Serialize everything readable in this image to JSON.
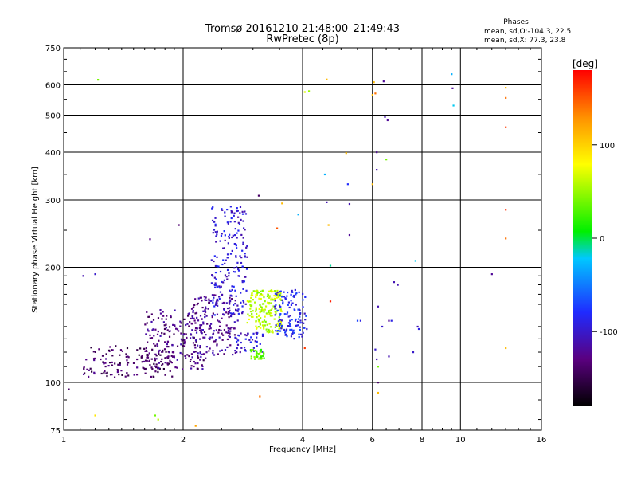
{
  "chart_data": {
    "type": "scatter",
    "title": "Tromsø 20161210 21:48:00–21:49:43",
    "subtitle": "RwPretec (8p)",
    "xlabel": "Frequency [MHz]",
    "ylabel": "Stationary phase Virtual Height [km]",
    "x_scale": "log",
    "y_scale": "log",
    "xlim": [
      1,
      16
    ],
    "ylim": [
      75,
      750
    ],
    "x_ticks": [
      1,
      2,
      4,
      6,
      8,
      10,
      16
    ],
    "y_ticks": [
      75,
      100,
      200,
      300,
      400,
      500,
      600,
      750
    ],
    "grid": true,
    "legend": {
      "title": "Phases",
      "lines": [
        "mean, sd,O:-104.3, 22.5",
        "mean, sd,X: 77.3, 23.8"
      ]
    },
    "colorbar": {
      "label": "[deg]",
      "range": [
        -180,
        180
      ],
      "ticks": [
        100,
        0,
        -100
      ]
    },
    "clusters": [
      {
        "x": [
          1.12,
          1.9
        ],
        "y": [
          103,
          125
        ],
        "phase": -140,
        "count": 150
      },
      {
        "x": [
          1.6,
          2.3
        ],
        "y": [
          108,
          155
        ],
        "phase": -128,
        "count": 180
      },
      {
        "x": [
          2.1,
          2.75
        ],
        "y": [
          118,
          170
        ],
        "phase": -120,
        "count": 170
      },
      {
        "x": [
          2.35,
          2.9
        ],
        "y": [
          150,
          290
        ],
        "phase": -95,
        "count": 200
      },
      {
        "x": [
          2.7,
          3.2
        ],
        "y": [
          120,
          135
        ],
        "phase": -100,
        "count": 40
      },
      {
        "x": [
          2.95,
          3.2
        ],
        "y": [
          115,
          122
        ],
        "phase": 35,
        "count": 40
      },
      {
        "x": [
          2.9,
          3.55
        ],
        "y": [
          135,
          175
        ],
        "phase": 60,
        "count": 180
      },
      {
        "x": [
          3.4,
          4.1
        ],
        "y": [
          130,
          175
        ],
        "phase": -85,
        "count": 120
      }
    ],
    "points": [
      {
        "x": 1.03,
        "y": 96,
        "phase": -140
      },
      {
        "x": 1.12,
        "y": 190,
        "phase": -110
      },
      {
        "x": 1.2,
        "y": 192,
        "phase": -100
      },
      {
        "x": 1.22,
        "y": 619,
        "phase": 40
      },
      {
        "x": 1.2,
        "y": 82,
        "phase": 90
      },
      {
        "x": 1.65,
        "y": 237,
        "phase": -125
      },
      {
        "x": 1.7,
        "y": 82,
        "phase": 40
      },
      {
        "x": 1.73,
        "y": 80,
        "phase": 60
      },
      {
        "x": 1.95,
        "y": 258,
        "phase": -135
      },
      {
        "x": 2.15,
        "y": 77,
        "phase": 120
      },
      {
        "x": 3.1,
        "y": 308,
        "phase": -140
      },
      {
        "x": 3.12,
        "y": 92,
        "phase": 140
      },
      {
        "x": 3.45,
        "y": 253,
        "phase": 150
      },
      {
        "x": 3.55,
        "y": 294,
        "phase": 110
      },
      {
        "x": 3.9,
        "y": 275,
        "phase": -30
      },
      {
        "x": 4.05,
        "y": 123,
        "phase": 160
      },
      {
        "x": 4.05,
        "y": 575,
        "phase": 70
      },
      {
        "x": 4.15,
        "y": 578,
        "phase": 50
      },
      {
        "x": 4.6,
        "y": 620,
        "phase": 110
      },
      {
        "x": 4.55,
        "y": 350,
        "phase": -30
      },
      {
        "x": 4.6,
        "y": 296,
        "phase": -110
      },
      {
        "x": 4.65,
        "y": 258,
        "phase": 110
      },
      {
        "x": 4.7,
        "y": 202,
        "phase": -10
      },
      {
        "x": 4.7,
        "y": 163,
        "phase": 170
      },
      {
        "x": 5.15,
        "y": 398,
        "phase": 110
      },
      {
        "x": 5.2,
        "y": 330,
        "phase": -80
      },
      {
        "x": 5.25,
        "y": 293,
        "phase": -110
      },
      {
        "x": 5.25,
        "y": 243,
        "phase": -120
      },
      {
        "x": 5.5,
        "y": 145,
        "phase": -70
      },
      {
        "x": 5.6,
        "y": 145,
        "phase": -90
      },
      {
        "x": 6.0,
        "y": 565,
        "phase": 110
      },
      {
        "x": 6.0,
        "y": 330,
        "phase": 110
      },
      {
        "x": 6.05,
        "y": 610,
        "phase": 110
      },
      {
        "x": 6.1,
        "y": 570,
        "phase": 140
      },
      {
        "x": 6.15,
        "y": 400,
        "phase": -120
      },
      {
        "x": 6.15,
        "y": 360,
        "phase": -110
      },
      {
        "x": 6.2,
        "y": 100,
        "phase": -140
      },
      {
        "x": 6.2,
        "y": 94,
        "phase": 110
      },
      {
        "x": 6.2,
        "y": 110,
        "phase": 40
      },
      {
        "x": 6.1,
        "y": 122,
        "phase": -100
      },
      {
        "x": 6.15,
        "y": 115,
        "phase": -110
      },
      {
        "x": 6.2,
        "y": 158,
        "phase": -110
      },
      {
        "x": 6.35,
        "y": 140,
        "phase": -100
      },
      {
        "x": 6.4,
        "y": 613,
        "phase": -120
      },
      {
        "x": 6.45,
        "y": 495,
        "phase": -110
      },
      {
        "x": 6.5,
        "y": 383,
        "phase": 40
      },
      {
        "x": 6.55,
        "y": 485,
        "phase": -120
      },
      {
        "x": 6.6,
        "y": 145,
        "phase": -120
      },
      {
        "x": 6.6,
        "y": 117,
        "phase": -110
      },
      {
        "x": 6.7,
        "y": 145,
        "phase": -90
      },
      {
        "x": 6.8,
        "y": 183,
        "phase": -110
      },
      {
        "x": 6.95,
        "y": 180,
        "phase": -110
      },
      {
        "x": 7.6,
        "y": 120,
        "phase": -100
      },
      {
        "x": 7.7,
        "y": 208,
        "phase": -20
      },
      {
        "x": 7.8,
        "y": 140,
        "phase": -110
      },
      {
        "x": 7.85,
        "y": 138,
        "phase": -90
      },
      {
        "x": 9.5,
        "y": 640,
        "phase": -30
      },
      {
        "x": 9.55,
        "y": 588,
        "phase": -120
      },
      {
        "x": 9.6,
        "y": 530,
        "phase": -20
      },
      {
        "x": 12.0,
        "y": 192,
        "phase": -120
      },
      {
        "x": 13.0,
        "y": 590,
        "phase": 110
      },
      {
        "x": 13.0,
        "y": 555,
        "phase": 140
      },
      {
        "x": 13.0,
        "y": 465,
        "phase": 160
      },
      {
        "x": 13.0,
        "y": 283,
        "phase": 165
      },
      {
        "x": 13.0,
        "y": 238,
        "phase": 140
      },
      {
        "x": 13.0,
        "y": 123,
        "phase": 110
      }
    ]
  }
}
